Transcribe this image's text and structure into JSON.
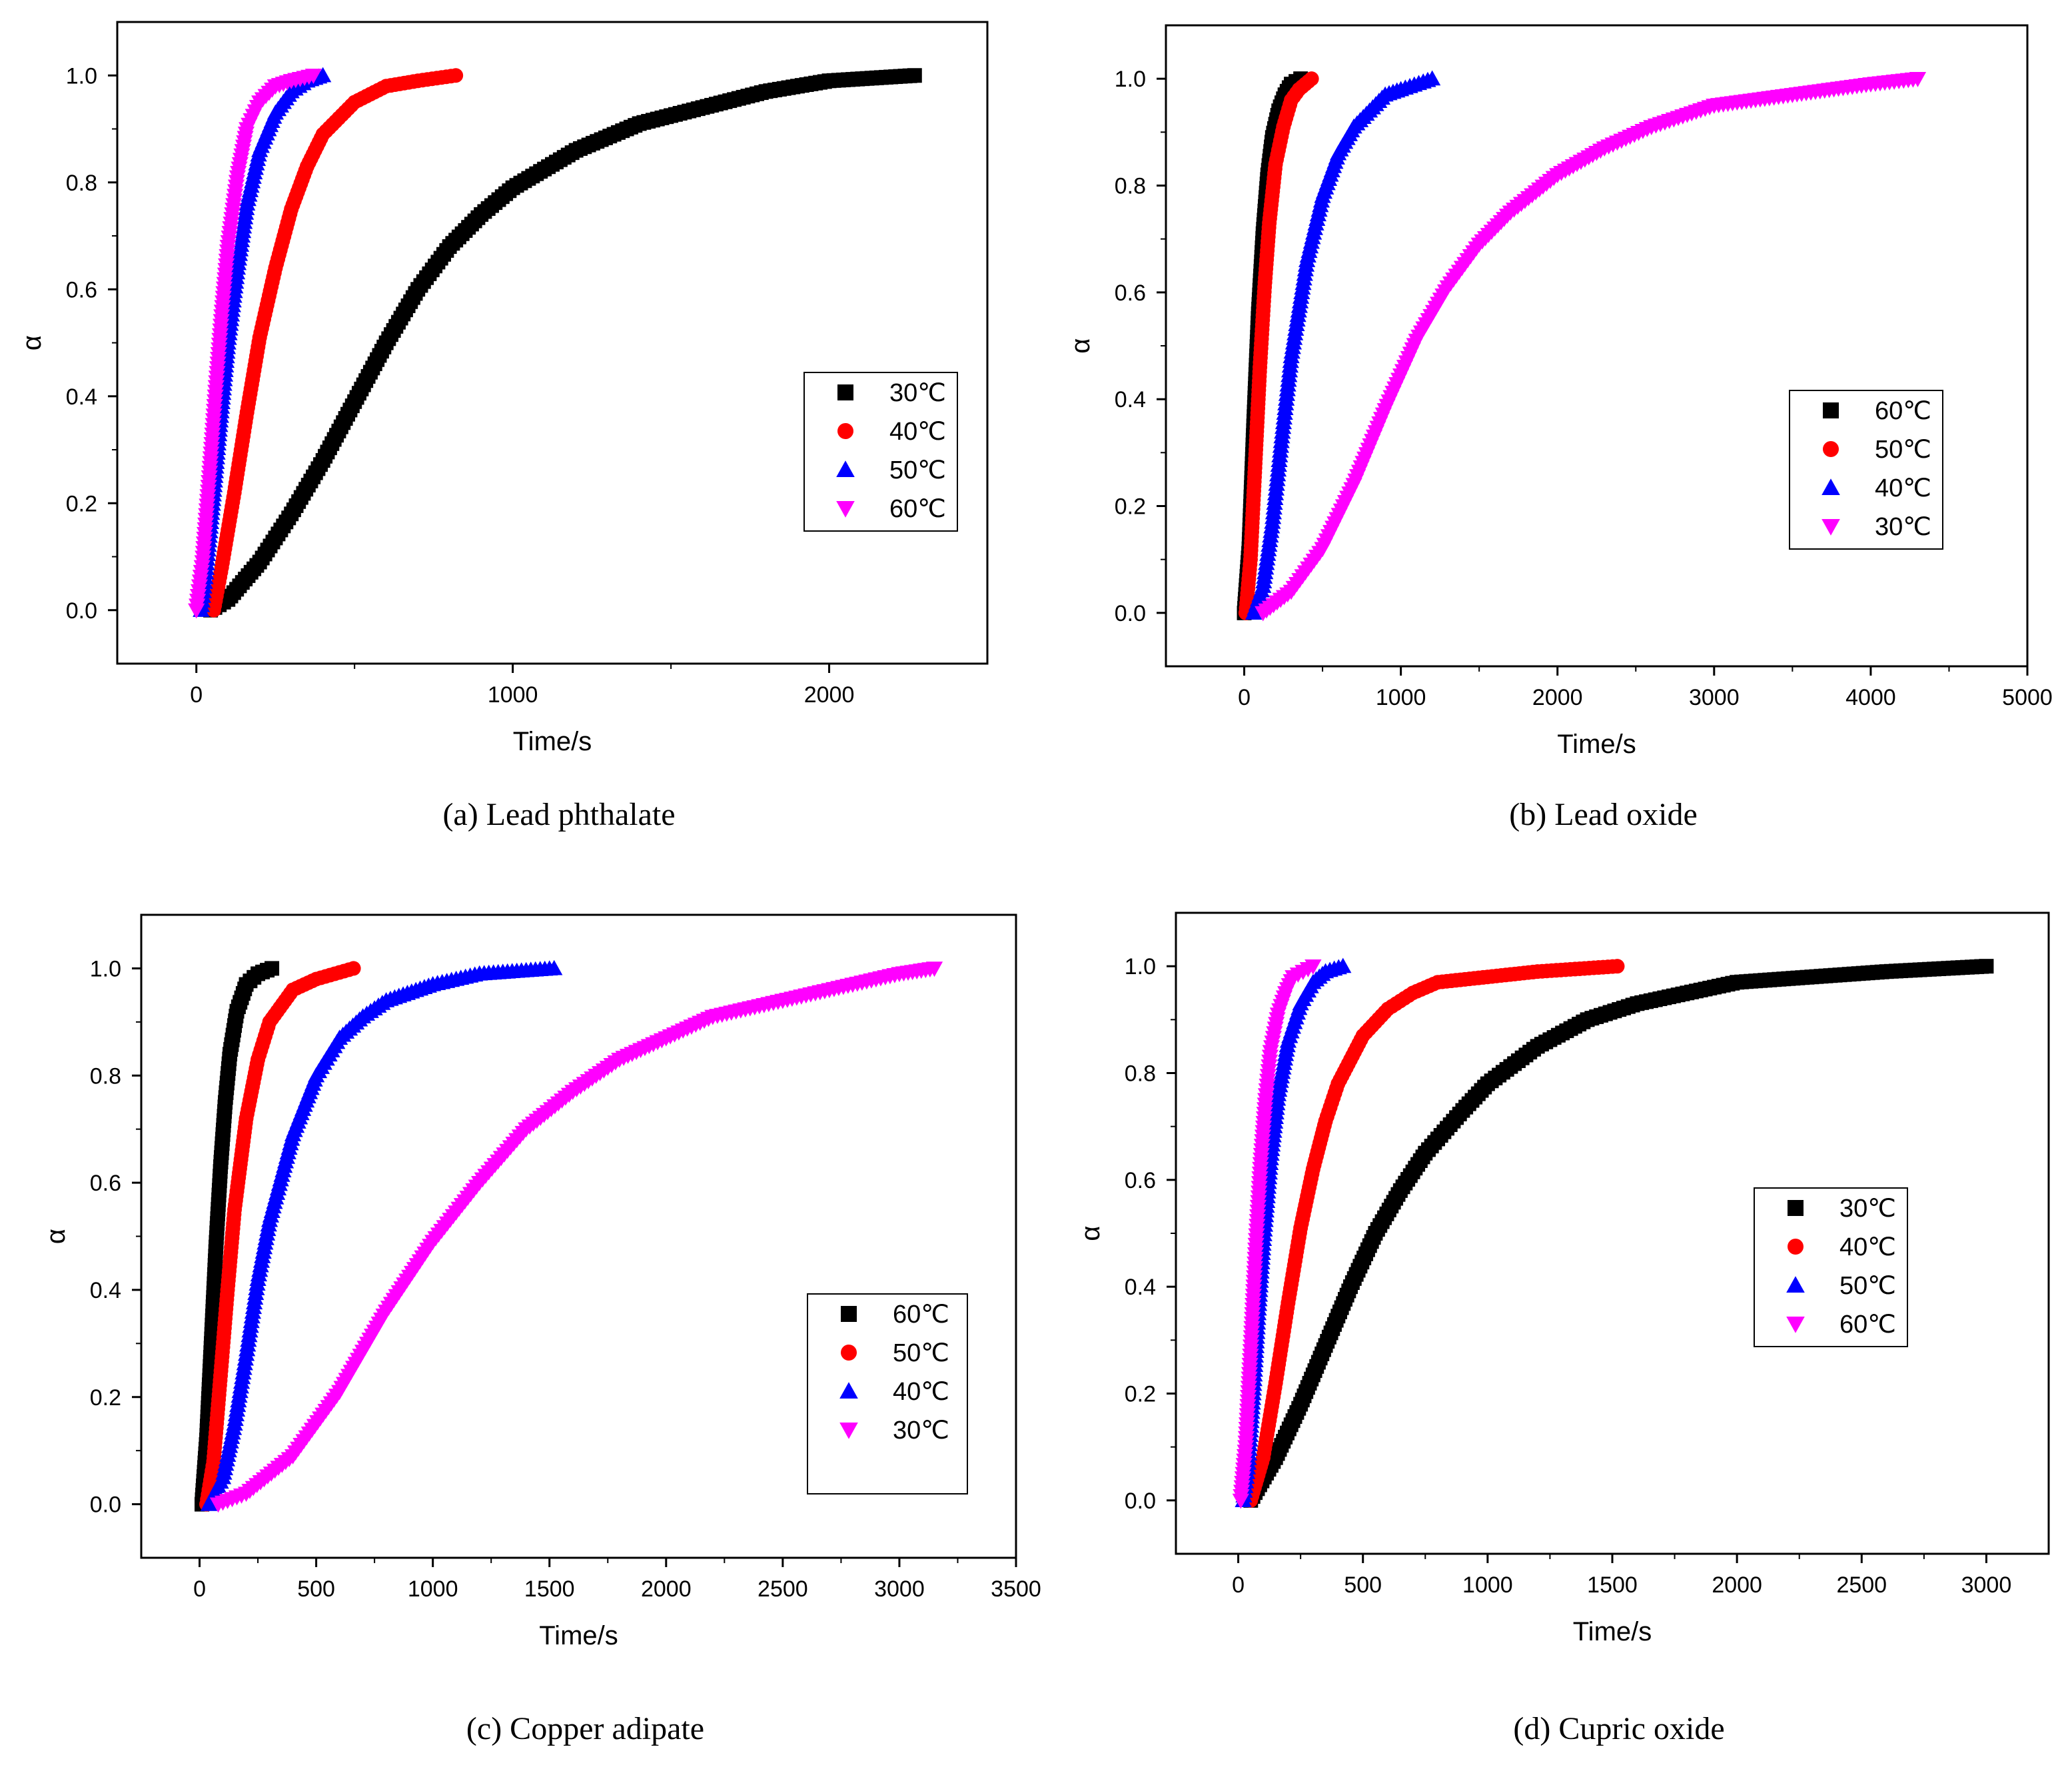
{
  "chart_data": [
    {
      "type": "scatter",
      "caption": "(a) Lead phthalate",
      "xlabel": "Time/s",
      "ylabel": "α",
      "xlim": [
        -250,
        2500
      ],
      "ylim": [
        -0.1,
        1.1
      ],
      "xticks": [
        0,
        1000,
        2000
      ],
      "yticks": [
        0.0,
        0.2,
        0.4,
        0.6,
        0.8,
        1.0
      ],
      "legend_position": "center-right",
      "series": [
        {
          "name": "30℃",
          "marker": "square",
          "color": "#000000",
          "x": [
            45,
            100,
            200,
            300,
            400,
            500,
            600,
            700,
            800,
            900,
            1000,
            1200,
            1400,
            1600,
            1800,
            2000,
            2270
          ],
          "y": [
            0.0,
            0.02,
            0.09,
            0.18,
            0.28,
            0.39,
            0.5,
            0.6,
            0.68,
            0.74,
            0.79,
            0.86,
            0.91,
            0.94,
            0.97,
            0.99,
            1.0
          ]
        },
        {
          "name": "40℃",
          "marker": "circle",
          "color": "#ff0000",
          "x": [
            55,
            80,
            120,
            160,
            200,
            250,
            300,
            350,
            400,
            500,
            600,
            700,
            820
          ],
          "y": [
            0.0,
            0.08,
            0.22,
            0.37,
            0.51,
            0.64,
            0.75,
            0.83,
            0.89,
            0.95,
            0.98,
            0.99,
            1.0
          ]
        },
        {
          "name": "50℃",
          "marker": "triangle-up",
          "color": "#0000ff",
          "x": [
            15,
            30,
            50,
            70,
            100,
            130,
            160,
            200,
            250,
            300,
            350,
            400
          ],
          "y": [
            0.0,
            0.07,
            0.19,
            0.32,
            0.5,
            0.64,
            0.76,
            0.86,
            0.93,
            0.97,
            0.99,
            1.0
          ]
        },
        {
          "name": "60℃",
          "marker": "triangle-down",
          "color": "#ff00ff",
          "x": [
            0,
            20,
            40,
            60,
            80,
            100,
            130,
            160,
            200,
            250,
            300,
            370
          ],
          "y": [
            0.0,
            0.09,
            0.24,
            0.4,
            0.55,
            0.68,
            0.81,
            0.9,
            0.95,
            0.98,
            0.99,
            1.0
          ]
        }
      ]
    },
    {
      "type": "scatter",
      "caption": "(b) Lead oxide",
      "xlabel": "Time/s",
      "ylabel": "α",
      "xlim": [
        -500,
        5000
      ],
      "ylim": [
        -0.1,
        1.1
      ],
      "xticks": [
        0,
        1000,
        2000,
        3000,
        4000,
        5000
      ],
      "yticks": [
        0.0,
        0.2,
        0.4,
        0.6,
        0.8,
        1.0
      ],
      "legend_position": "center-right",
      "series": [
        {
          "name": "60℃",
          "marker": "square",
          "color": "#000000",
          "x": [
            0,
            30,
            60,
            90,
            120,
            150,
            180,
            220,
            260,
            300,
            360
          ],
          "y": [
            0.0,
            0.12,
            0.35,
            0.56,
            0.71,
            0.82,
            0.89,
            0.94,
            0.97,
            0.99,
            1.0
          ]
        },
        {
          "name": "50℃",
          "marker": "circle",
          "color": "#ff0000",
          "x": [
            10,
            40,
            70,
            100,
            130,
            160,
            200,
            250,
            300,
            350,
            430
          ],
          "y": [
            0.0,
            0.1,
            0.28,
            0.46,
            0.61,
            0.73,
            0.84,
            0.91,
            0.96,
            0.98,
            1.0
          ]
        },
        {
          "name": "40℃",
          "marker": "triangle-up",
          "color": "#0000ff",
          "x": [
            60,
            120,
            180,
            240,
            300,
            400,
            500,
            600,
            700,
            800,
            900,
            1000,
            1200
          ],
          "y": [
            0.0,
            0.05,
            0.17,
            0.33,
            0.48,
            0.66,
            0.78,
            0.86,
            0.91,
            0.94,
            0.97,
            0.98,
            1.0
          ]
        },
        {
          "name": "30℃",
          "marker": "triangle-down",
          "color": "#ff00ff",
          "x": [
            120,
            300,
            500,
            700,
            900,
            1100,
            1300,
            1500,
            1700,
            2000,
            2300,
            2600,
            3000,
            3500,
            4000,
            4300
          ],
          "y": [
            0.0,
            0.04,
            0.12,
            0.24,
            0.38,
            0.51,
            0.61,
            0.69,
            0.75,
            0.82,
            0.87,
            0.91,
            0.95,
            0.97,
            0.99,
            1.0
          ]
        }
      ]
    },
    {
      "type": "scatter",
      "caption": "(c) Copper adipate",
      "xlabel": "Time/s",
      "ylabel": "α",
      "xlim": [
        -250,
        3500
      ],
      "ylim": [
        -0.1,
        1.1
      ],
      "xticks": [
        0,
        500,
        1000,
        1500,
        2000,
        2500,
        3000,
        3500
      ],
      "yticks": [
        0.0,
        0.2,
        0.4,
        0.6,
        0.8,
        1.0
      ],
      "legend_position": "bottom-right",
      "series": [
        {
          "name": "60℃",
          "marker": "square",
          "color": "#000000",
          "x": [
            10,
            30,
            50,
            70,
            90,
            110,
            130,
            160,
            200,
            250,
            310
          ],
          "y": [
            0.0,
            0.12,
            0.3,
            0.48,
            0.63,
            0.75,
            0.84,
            0.92,
            0.97,
            0.99,
            1.0
          ]
        },
        {
          "name": "50℃",
          "marker": "circle",
          "color": "#ff0000",
          "x": [
            30,
            60,
            90,
            120,
            150,
            200,
            250,
            300,
            400,
            500,
            660
          ],
          "y": [
            0.0,
            0.08,
            0.24,
            0.4,
            0.55,
            0.72,
            0.83,
            0.9,
            0.96,
            0.98,
            1.0
          ]
        },
        {
          "name": "40℃",
          "marker": "triangle-up",
          "color": "#0000ff",
          "x": [
            40,
            100,
            150,
            200,
            250,
            300,
            400,
            500,
            600,
            700,
            800,
            1000,
            1200,
            1520
          ],
          "y": [
            0.0,
            0.05,
            0.15,
            0.28,
            0.42,
            0.53,
            0.69,
            0.8,
            0.87,
            0.91,
            0.94,
            0.97,
            0.99,
            1.0
          ]
        },
        {
          "name": "30℃",
          "marker": "triangle-down",
          "color": "#ff00ff",
          "x": [
            80,
            200,
            400,
            600,
            800,
            1000,
            1200,
            1400,
            1600,
            1800,
            2000,
            2200,
            2400,
            2700,
            3000,
            3150
          ],
          "y": [
            0.0,
            0.02,
            0.09,
            0.21,
            0.36,
            0.49,
            0.6,
            0.7,
            0.77,
            0.83,
            0.87,
            0.91,
            0.93,
            0.96,
            0.99,
            1.0
          ]
        }
      ]
    },
    {
      "type": "scatter",
      "caption": "(d) Cupric oxide",
      "xlabel": "Time/s",
      "ylabel": "α",
      "xlim": [
        -250,
        3250
      ],
      "ylim": [
        -0.1,
        1.1
      ],
      "xticks": [
        0,
        500,
        1000,
        1500,
        2000,
        2500,
        3000
      ],
      "yticks": [
        0.0,
        0.2,
        0.4,
        0.6,
        0.8,
        1.0
      ],
      "legend_position": "center-right",
      "series": [
        {
          "name": "30℃",
          "marker": "square",
          "color": "#000000",
          "x": [
            50,
            150,
            250,
            350,
            450,
            550,
            650,
            750,
            900,
            1000,
            1200,
            1400,
            1600,
            1800,
            2000,
            2300,
            2600,
            3000
          ],
          "y": [
            0.0,
            0.08,
            0.18,
            0.29,
            0.4,
            0.5,
            0.58,
            0.65,
            0.73,
            0.78,
            0.85,
            0.9,
            0.93,
            0.95,
            0.97,
            0.98,
            0.99,
            1.0
          ]
        },
        {
          "name": "40℃",
          "marker": "circle",
          "color": "#ff0000",
          "x": [
            50,
            100,
            150,
            200,
            250,
            300,
            350,
            400,
            500,
            600,
            700,
            800,
            1000,
            1200,
            1520
          ],
          "y": [
            0.0,
            0.08,
            0.22,
            0.37,
            0.51,
            0.62,
            0.71,
            0.78,
            0.87,
            0.92,
            0.95,
            0.97,
            0.98,
            0.99,
            1.0
          ]
        },
        {
          "name": "50℃",
          "marker": "triangle-up",
          "color": "#0000ff",
          "x": [
            20,
            40,
            60,
            80,
            100,
            130,
            160,
            200,
            250,
            300,
            350,
            420
          ],
          "y": [
            0.0,
            0.07,
            0.2,
            0.35,
            0.48,
            0.64,
            0.76,
            0.86,
            0.93,
            0.97,
            0.99,
            1.0
          ]
        },
        {
          "name": "60℃",
          "marker": "triangle-down",
          "color": "#ff00ff",
          "x": [
            10,
            30,
            50,
            70,
            90,
            110,
            130,
            160,
            190,
            220,
            260,
            300
          ],
          "y": [
            0.0,
            0.1,
            0.28,
            0.47,
            0.63,
            0.75,
            0.84,
            0.91,
            0.95,
            0.98,
            0.99,
            1.0
          ]
        }
      ]
    }
  ]
}
